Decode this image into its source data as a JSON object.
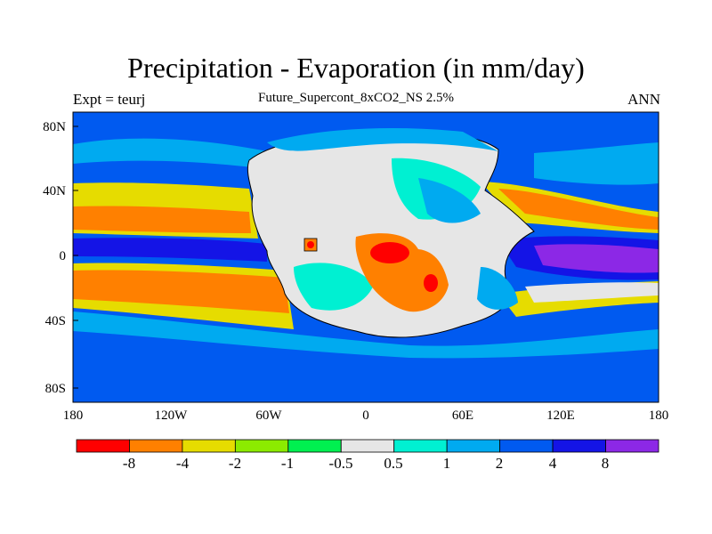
{
  "title": "Precipitation - Evaporation (in mm/day)",
  "subtitle": "Future_Supercont_8xCO2_NS 2.5%",
  "left_label": "Expt = teurj",
  "right_label": "ANN",
  "axes": {
    "lat_ticks": [
      "80N",
      "40N",
      "0",
      "40S",
      "80S"
    ],
    "lon_ticks": [
      "180",
      "120W",
      "60W",
      "0",
      "60E",
      "120E",
      "180"
    ]
  },
  "colorbar": {
    "colors": [
      "#ff0000",
      "#ff8000",
      "#e6dc00",
      "#8ceb00",
      "#00f050",
      "#e6e6e6",
      "#00f0d2",
      "#00aaf0",
      "#005af0",
      "#1414e6",
      "#8c28e6"
    ],
    "labels": [
      "-8",
      "-4",
      "-2",
      "-1",
      "-0.5",
      "0.5",
      "1",
      "2",
      "4",
      "8"
    ]
  }
}
